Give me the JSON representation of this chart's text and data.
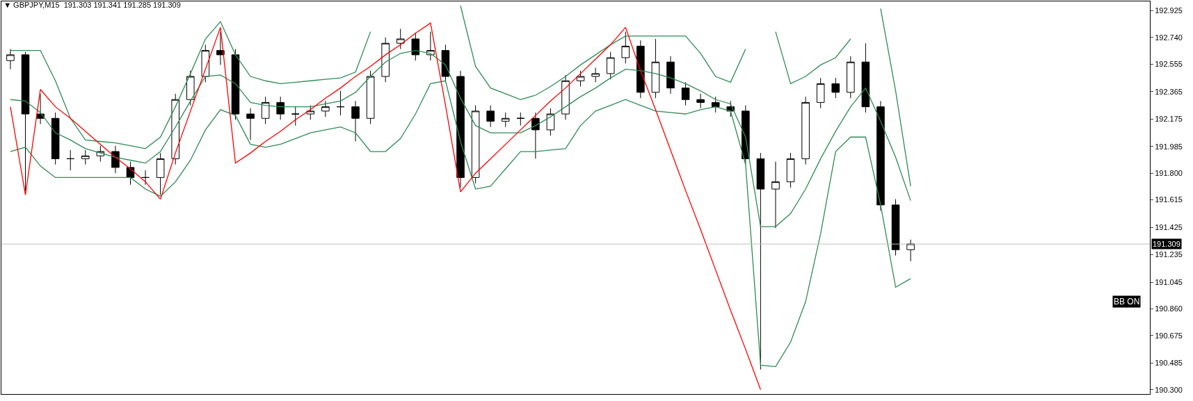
{
  "chart_data": {
    "type": "candlestick",
    "title": "▼ GBPJPY,M15  191.303 191.341 191.285 191.309",
    "color": "#000000",
    "categories": [
      null,
      null,
      null,
      null,
      null,
      null,
      null,
      null,
      null,
      null,
      null,
      null,
      null,
      null,
      null,
      null,
      null,
      null,
      null,
      null,
      null,
      null,
      null,
      null,
      null,
      null,
      null,
      null,
      null,
      null,
      null,
      null,
      null,
      null,
      null,
      null,
      null,
      null,
      null,
      null,
      null,
      null,
      null,
      null,
      null,
      null,
      null,
      null,
      null,
      null,
      null,
      null,
      null,
      null,
      null,
      null,
      null,
      null,
      null,
      null,
      null
    ],
    "ohlc": [
      [
        192.58,
        192.66,
        192.52,
        192.62
      ],
      [
        192.62,
        192.64,
        191.68,
        192.21
      ],
      [
        192.21,
        192.35,
        192.14,
        192.18
      ],
      [
        192.18,
        192.22,
        191.86,
        191.9
      ],
      [
        191.9,
        191.96,
        191.82,
        191.9
      ],
      [
        191.9,
        191.96,
        191.86,
        191.92
      ],
      [
        191.92,
        191.99,
        191.88,
        191.95
      ],
      [
        191.95,
        191.99,
        191.8,
        191.84
      ],
      [
        191.84,
        191.88,
        191.72,
        191.77
      ],
      [
        191.77,
        191.82,
        191.72,
        191.77
      ],
      [
        191.77,
        191.94,
        191.65,
        191.9
      ],
      [
        191.9,
        192.35,
        191.86,
        192.31
      ],
      [
        192.31,
        192.51,
        192.27,
        192.47
      ],
      [
        192.47,
        192.69,
        192.43,
        192.65
      ],
      [
        192.65,
        192.78,
        192.55,
        192.62
      ],
      [
        192.62,
        192.66,
        192.17,
        192.21
      ],
      [
        192.21,
        192.25,
        192.03,
        192.18
      ],
      [
        192.18,
        192.33,
        192.14,
        192.29
      ],
      [
        192.29,
        192.33,
        192.17,
        192.21
      ],
      [
        192.21,
        192.26,
        192.13,
        192.21
      ],
      [
        192.21,
        192.27,
        192.17,
        192.23
      ],
      [
        192.23,
        192.3,
        192.19,
        192.26
      ],
      [
        192.26,
        192.37,
        192.2,
        192.26
      ],
      [
        192.26,
        192.3,
        192.02,
        192.18
      ],
      [
        192.18,
        192.51,
        192.14,
        192.47
      ],
      [
        192.47,
        192.74,
        192.43,
        192.7
      ],
      [
        192.7,
        192.8,
        192.66,
        192.73
      ],
      [
        192.73,
        192.77,
        192.58,
        192.62
      ],
      [
        192.62,
        192.78,
        192.58,
        192.65
      ],
      [
        192.65,
        192.69,
        192.43,
        192.47
      ],
      [
        192.47,
        192.51,
        191.7,
        191.77
      ],
      [
        191.77,
        192.27,
        191.73,
        192.23
      ],
      [
        192.23,
        192.27,
        192.12,
        192.16
      ],
      [
        192.16,
        192.22,
        192.12,
        192.18
      ],
      [
        192.18,
        192.22,
        192.13,
        192.18
      ],
      [
        192.18,
        192.22,
        191.9,
        192.1
      ],
      [
        192.1,
        192.25,
        192.06,
        192.21
      ],
      [
        192.21,
        192.48,
        192.17,
        192.44
      ],
      [
        192.44,
        192.51,
        192.4,
        192.47
      ],
      [
        192.47,
        192.53,
        192.43,
        192.49
      ],
      [
        192.49,
        192.64,
        192.45,
        192.6
      ],
      [
        192.6,
        192.78,
        192.56,
        192.68
      ],
      [
        192.68,
        192.72,
        192.32,
        192.36
      ],
      [
        192.36,
        192.73,
        192.32,
        192.57
      ],
      [
        192.57,
        192.61,
        192.35,
        192.39
      ],
      [
        192.39,
        192.43,
        192.27,
        192.31
      ],
      [
        192.31,
        192.35,
        192.25,
        192.29
      ],
      [
        192.29,
        192.33,
        192.22,
        192.26
      ],
      [
        192.26,
        192.3,
        192.19,
        192.23
      ],
      [
        192.23,
        192.27,
        191.86,
        191.9
      ],
      [
        191.9,
        191.94,
        190.44,
        191.69
      ],
      [
        191.69,
        191.88,
        191.42,
        191.74
      ],
      [
        191.74,
        191.94,
        191.7,
        191.9
      ],
      [
        191.9,
        192.33,
        191.86,
        192.29
      ],
      [
        192.29,
        192.46,
        192.25,
        192.42
      ],
      [
        192.42,
        192.46,
        192.32,
        192.36
      ],
      [
        192.36,
        192.61,
        192.32,
        192.57
      ],
      [
        192.57,
        192.7,
        192.22,
        192.26
      ],
      [
        192.26,
        192.3,
        191.54,
        191.58
      ],
      [
        191.58,
        191.62,
        191.23,
        191.27
      ],
      [
        191.27,
        191.34,
        191.19,
        191.31
      ]
    ],
    "series": [
      {
        "type": "line",
        "color": "#2e8b57",
        "values": [
          192.65,
          192.65,
          192.65,
          192.44,
          192.18,
          192.03,
          192.02,
          192.01,
          191.99,
          191.97,
          192.05,
          192.26,
          192.49,
          192.73,
          192.85,
          192.62,
          192.47,
          192.44,
          192.42,
          192.43,
          192.44,
          192.45,
          192.46,
          192.5,
          192.78,
          null,
          null,
          null,
          null,
          null,
          192.96,
          192.54,
          192.39,
          192.35,
          192.31,
          192.34,
          192.4,
          192.47,
          192.55,
          192.62,
          192.69,
          192.75,
          192.75,
          192.75,
          192.75,
          192.75,
          192.63,
          192.47,
          192.43,
          192.66,
          null,
          192.78,
          192.42,
          192.47,
          192.55,
          192.6,
          192.73,
          null,
          192.94,
          192.37,
          191.71
        ]
      },
      {
        "type": "line",
        "color": "#2e8b57",
        "values": [
          192.31,
          192.3,
          192.22,
          192.08,
          192.03,
          191.97,
          191.94,
          191.91,
          191.89,
          191.87,
          191.95,
          192.12,
          192.3,
          192.47,
          192.48,
          192.42,
          192.29,
          192.27,
          192.26,
          192.26,
          192.26,
          192.28,
          192.3,
          192.36,
          192.47,
          192.57,
          192.63,
          192.65,
          192.63,
          192.55,
          192.32,
          192.13,
          192.08,
          192.08,
          192.08,
          192.13,
          192.19,
          192.26,
          192.33,
          192.39,
          192.46,
          192.52,
          192.51,
          192.49,
          192.46,
          192.42,
          192.37,
          192.31,
          192.28,
          192.05,
          191.43,
          191.43,
          191.52,
          191.69,
          191.9,
          192.09,
          192.26,
          192.39,
          192.16,
          191.91,
          191.61
        ]
      },
      {
        "type": "line",
        "color": "#2e8b57",
        "values": [
          191.95,
          191.98,
          191.85,
          191.77,
          191.77,
          191.77,
          191.77,
          191.77,
          191.77,
          191.69,
          191.64,
          191.74,
          191.89,
          192.1,
          192.24,
          192.2,
          192.0,
          191.98,
          192.0,
          192.04,
          192.08,
          192.1,
          192.12,
          192.08,
          191.95,
          191.95,
          192.04,
          192.21,
          192.42,
          192.44,
          192.02,
          191.69,
          191.71,
          191.83,
          191.95,
          191.95,
          191.96,
          191.97,
          192.13,
          192.23,
          192.27,
          192.31,
          192.27,
          192.23,
          192.22,
          192.21,
          192.24,
          192.26,
          192.23,
          191.86,
          190.47,
          190.46,
          190.63,
          190.91,
          191.38,
          191.95,
          192.05,
          192.05,
          191.58,
          191.01,
          191.07
        ]
      },
      {
        "type": "line",
        "color": "#ff0000",
        "values": [
          192.26,
          191.65,
          192.38,
          192.26,
          192.18,
          192.09,
          192.0,
          191.91,
          191.83,
          191.74,
          191.62,
          191.94,
          192.23,
          192.52,
          192.81,
          191.87,
          191.94,
          192.02,
          192.09,
          192.17,
          192.24,
          192.32,
          192.39,
          192.47,
          192.54,
          192.62,
          192.69,
          192.77,
          192.84,
          192.27,
          191.67,
          191.8,
          191.9,
          192.0,
          192.1,
          192.2,
          192.3,
          192.39,
          192.49,
          192.59,
          192.69,
          192.81,
          192.51,
          192.24,
          191.96,
          191.68,
          191.41,
          191.13,
          190.85,
          190.58,
          190.3,
          null,
          null,
          null,
          null,
          null,
          null,
          null,
          null,
          null,
          null
        ]
      }
    ],
    "ref_lines": [
      {
        "axis": "y",
        "value": 191.309,
        "label": "191.309",
        "color": "#c0c0c0"
      }
    ],
    "annotations": [
      "BB ON"
    ],
    "ylim": [
      190.27,
      192.99
    ],
    "yticks": [
      {
        "value": 190.3,
        "label": "190.300"
      },
      190.485,
      190.675,
      {
        "value": 190.86,
        "label": "190.860"
      },
      191.045,
      191.235,
      191.425,
      191.615,
      {
        "value": 191.8,
        "label": "191.800"
      },
      191.985,
      192.175,
      192.365,
      192.555,
      {
        "value": 192.74,
        "label": "192.740"
      },
      192.925
    ],
    "tick_labels": "y"
  }
}
